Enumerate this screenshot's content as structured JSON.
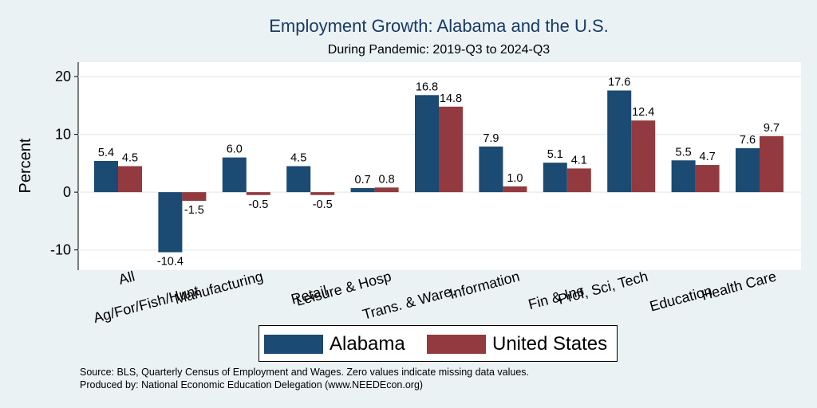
{
  "chart_data": {
    "type": "bar",
    "title": "Employment Growth: Alabama and the U.S.",
    "subtitle": "During Pandemic: 2019-Q3 to 2024-Q3",
    "ylabel": "Percent",
    "xlabel": "",
    "ylim": [
      -13.5,
      22.5
    ],
    "yticks": [
      -10,
      0,
      10,
      20
    ],
    "categories": [
      "All",
      "Ag/For/Fish/Hunt",
      "Manufacturing",
      "Retail",
      "Leisure & Hosp",
      "Trans. & Ware.",
      "Information",
      "Fin & Ins",
      "Prof, Sci, Tech",
      "Education",
      "Health Care"
    ],
    "series": [
      {
        "name": "Alabama",
        "color": "#1b4a72",
        "values": [
          5.4,
          -10.4,
          6.0,
          4.5,
          0.7,
          16.8,
          7.9,
          5.1,
          17.6,
          5.5,
          7.6
        ],
        "labels": [
          "5.4",
          "-10.4",
          "6.0",
          "4.5",
          "0.7",
          "16.8",
          "7.9",
          "5.1",
          "17.6",
          "5.5",
          "7.6"
        ]
      },
      {
        "name": "United States",
        "color": "#923a3f",
        "values": [
          4.5,
          -1.5,
          -0.5,
          -0.5,
          0.8,
          14.8,
          1.0,
          4.1,
          12.4,
          4.7,
          9.7
        ],
        "labels": [
          "4.5",
          "-1.5",
          "-0.5",
          "-0.5",
          "0.8",
          "14.8",
          "1.0",
          "4.1",
          "12.4",
          "4.7",
          "9.7"
        ]
      }
    ],
    "grid": true,
    "legend": "bottom"
  },
  "legend": {
    "items": [
      {
        "label": "Alabama",
        "color": "#1b4a72"
      },
      {
        "label": "United States",
        "color": "#923a3f"
      }
    ]
  },
  "notes": {
    "source": "Source: BLS, Quarterly Census of Employment and Wages. Zero values indicate missing data values.",
    "produced": "Produced by: National Economic Education Delegation (www.NEEDEcon.org)"
  }
}
